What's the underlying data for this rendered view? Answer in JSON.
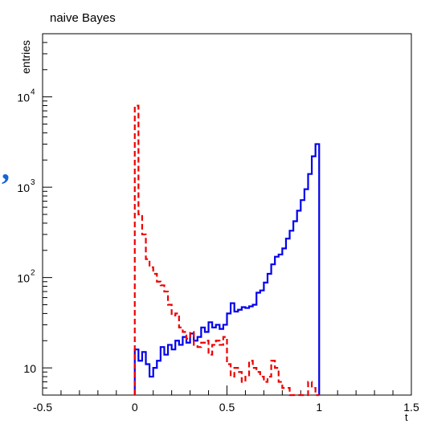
{
  "chart_data": {
    "type": "line",
    "title": "naive Bayes",
    "xlabel": "t",
    "ylabel": "entries",
    "xlim": [
      -0.5,
      1.5
    ],
    "ylim": [
      5,
      50000
    ],
    "yscale": "log",
    "x_ticks": [
      "-0.5",
      "0",
      "0.5",
      "1",
      "1.5"
    ],
    "y_ticks": [
      {
        "value": 10,
        "label": "10",
        "exp": ""
      },
      {
        "value": 100,
        "label": "10",
        "exp": "2"
      },
      {
        "value": 1000,
        "label": "10",
        "exp": "3"
      },
      {
        "value": 10000,
        "label": "10",
        "exp": "4"
      }
    ],
    "grid": false,
    "bin_width": 0.02,
    "series": [
      {
        "color": "#0000ee",
        "style": "solid",
        "x0": 0.0,
        "values": [
          16,
          12,
          15,
          11,
          8,
          10,
          12,
          17,
          14,
          18,
          16,
          20,
          18,
          22,
          19,
          24,
          20,
          22,
          28,
          25,
          32,
          28,
          30,
          27,
          30,
          40,
          52,
          42,
          44,
          47,
          46,
          48,
          50,
          68,
          72,
          88,
          110,
          140,
          170,
          180,
          210,
          270,
          330,
          420,
          550,
          720,
          950,
          1400,
          2200,
          3000
        ]
      },
      {
        "color": "#ee0000",
        "style": "dashed",
        "x0": 0.0,
        "values": [
          8000,
          500,
          300,
          160,
          130,
          110,
          90,
          82,
          70,
          50,
          38,
          40,
          28,
          25,
          21,
          25,
          18,
          17,
          19,
          20,
          14,
          18,
          20,
          18,
          22,
          11,
          8,
          10,
          9,
          7,
          8,
          12,
          10,
          9,
          8,
          7,
          8,
          12,
          10,
          7,
          6,
          6,
          5,
          5,
          4,
          4,
          5,
          7,
          6,
          4
        ]
      }
    ]
  }
}
